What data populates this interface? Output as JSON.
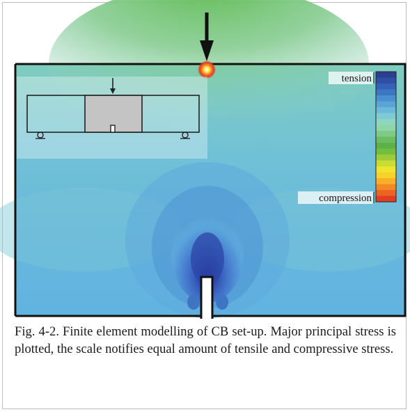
{
  "figure": {
    "legend": {
      "top_label": "tension",
      "bottom_label": "compression",
      "colors": [
        "#2a3f8f",
        "#2f4fa6",
        "#3562b8",
        "#3b78c4",
        "#4a8fcf",
        "#5aa5d8",
        "#6cb9dc",
        "#7ecbd6",
        "#8ed6c2",
        "#8fd6a6",
        "#7fcb86",
        "#6bbd63",
        "#5db04a",
        "#74be3e",
        "#9ccc3a",
        "#c8dc33",
        "#ece630",
        "#f8d22a",
        "#f7b028",
        "#f18a26",
        "#ea6424",
        "#e23c22"
      ]
    },
    "caption": "Fig. 4-2. Finite element modelling of CB set-up. Major principal stress is plotted, the scale notifies equal amount of tensile and compressive stress."
  }
}
